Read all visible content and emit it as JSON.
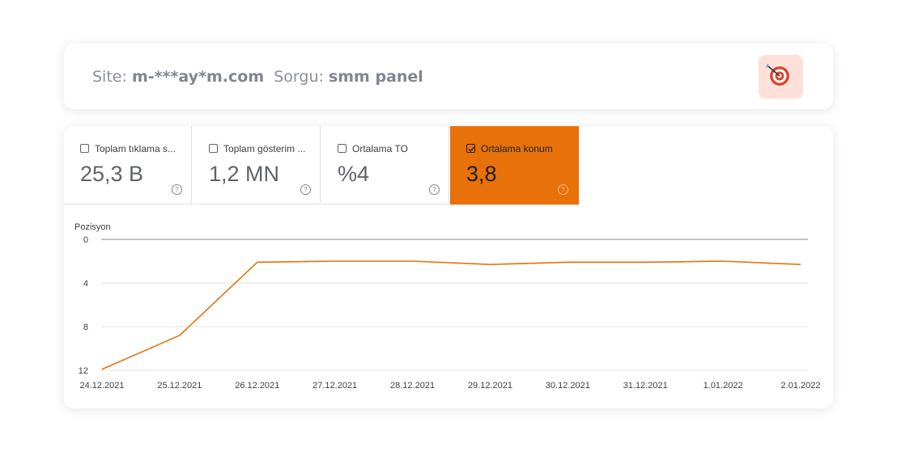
{
  "header": {
    "site_label": "Site:",
    "site_value": "m-***ay*m.com",
    "query_label": "Sorgu:",
    "query_value": "smm panel",
    "icon": "target-icon"
  },
  "metrics": [
    {
      "label": "Toplam tıklama s...",
      "value": "25,3 B",
      "checked": false
    },
    {
      "label": "Toplam gösterim ...",
      "value": "1,2 MN",
      "checked": false
    },
    {
      "label": "Ortalama TO",
      "value": "%4",
      "checked": false
    },
    {
      "label": "Ortalama konum",
      "value": "3,8",
      "checked": true
    }
  ],
  "colors": {
    "accent": "#e8710a",
    "line": "#e8710a",
    "grid": "#e0e0e0",
    "zero_line": "#9aa0a6"
  },
  "chart_data": {
    "type": "line",
    "ylabel": "Pozisyon",
    "xlabel": "",
    "y_inverted": true,
    "ylim": [
      0,
      12
    ],
    "yticks": [
      0,
      4,
      8,
      12
    ],
    "grid": true,
    "categories": [
      "24.12.2021",
      "25.12.2021",
      "26.12.2021",
      "27.12.2021",
      "28.12.2021",
      "29.12.2021",
      "30.12.2021",
      "31.12.2021",
      "1.01.2022",
      "2.01.2022"
    ],
    "series": [
      {
        "values": [
          11.9,
          8.8,
          2.1,
          2.0,
          2.0,
          2.3,
          2.1,
          2.1,
          2.0,
          2.3
        ]
      }
    ]
  }
}
